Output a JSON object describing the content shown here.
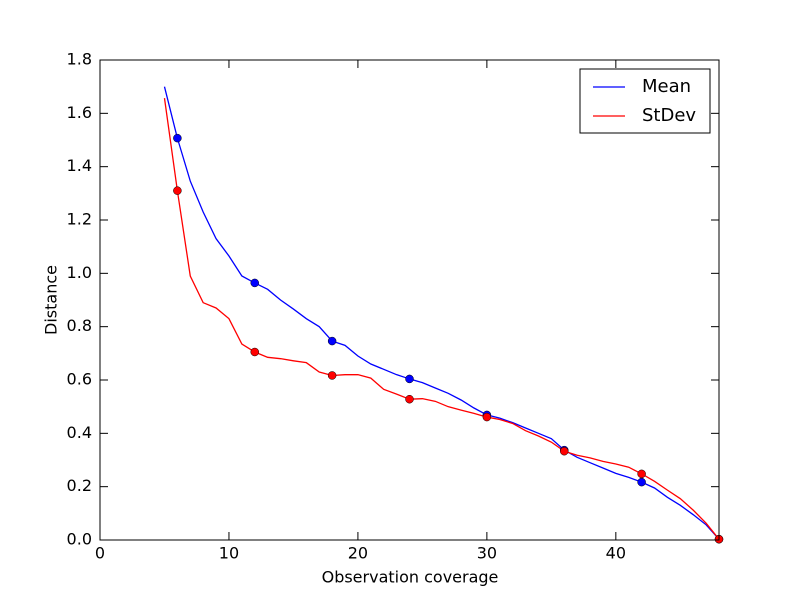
{
  "chart_data": {
    "type": "line",
    "x_label": "Observation coverage",
    "y_label": "Distance",
    "x": [
      5,
      6,
      7,
      8,
      9,
      10,
      11,
      12,
      13,
      14,
      15,
      16,
      17,
      18,
      19,
      20,
      21,
      22,
      23,
      24,
      25,
      26,
      27,
      28,
      29,
      30,
      31,
      32,
      33,
      34,
      35,
      36,
      37,
      38,
      39,
      40,
      41,
      42,
      43,
      44,
      45,
      46,
      47,
      48
    ],
    "series": [
      {
        "name": "Mean",
        "color": "#0000ff",
        "values": [
          1.7,
          1.507,
          1.346,
          1.23,
          1.13,
          1.065,
          0.99,
          0.964,
          0.94,
          0.9,
          0.866,
          0.83,
          0.8,
          0.746,
          0.73,
          0.69,
          0.66,
          0.64,
          0.62,
          0.604,
          0.59,
          0.57,
          0.55,
          0.525,
          0.495,
          0.469,
          0.457,
          0.44,
          0.42,
          0.4,
          0.38,
          0.337,
          0.31,
          0.29,
          0.27,
          0.25,
          0.235,
          0.217,
          0.195,
          0.16,
          0.13,
          0.095,
          0.057,
          0.003
        ]
      },
      {
        "name": "StDev",
        "color": "#ff0000",
        "values": [
          1.657,
          1.31,
          0.99,
          0.89,
          0.87,
          0.83,
          0.735,
          0.705,
          0.685,
          0.68,
          0.672,
          0.665,
          0.63,
          0.617,
          0.62,
          0.62,
          0.607,
          0.565,
          0.547,
          0.528,
          0.53,
          0.52,
          0.5,
          0.487,
          0.475,
          0.461,
          0.452,
          0.437,
          0.41,
          0.39,
          0.367,
          0.333,
          0.318,
          0.308,
          0.295,
          0.285,
          0.273,
          0.248,
          0.22,
          0.187,
          0.155,
          0.112,
          0.063,
          0.003
        ]
      }
    ],
    "markevery": 6,
    "xlim": [
      0,
      48
    ],
    "xticks": [
      0,
      10,
      20,
      30,
      40
    ],
    "ylim": [
      0,
      1.8
    ],
    "yticks": [
      {
        "value": 0,
        "label": "0.0"
      },
      {
        "value": 0.2,
        "label": "0.2"
      },
      {
        "value": 0.4,
        "label": "0.4"
      },
      {
        "value": 0.6,
        "label": "0.6"
      },
      {
        "value": 0.8,
        "label": "0.8"
      },
      {
        "value": 1.0,
        "label": "1.0"
      },
      {
        "value": 1.2,
        "label": "1.2"
      },
      {
        "value": 1.4,
        "label": "1.4"
      },
      {
        "value": 1.6,
        "label": "1.6"
      },
      {
        "value": 1.8,
        "label": "1.8"
      }
    ],
    "grid": false,
    "legend": "upper right"
  }
}
